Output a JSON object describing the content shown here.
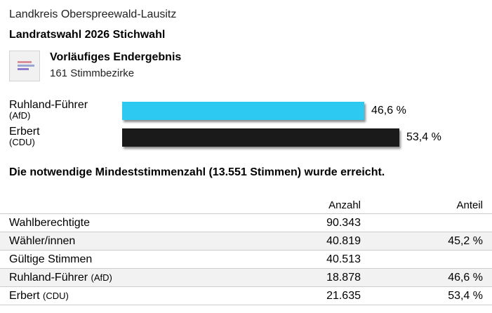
{
  "header": {
    "district": "Landkreis Oberspreewald-Lausitz",
    "election": "Landratswahl 2026 Stichwahl"
  },
  "status": {
    "icon": "bar-chart-icon",
    "title": "Vorläufiges Endergebnis",
    "subtitle": "161 Stimmbezirke"
  },
  "candidates": [
    {
      "name": "Ruhland-Führer",
      "party": "(AfD)",
      "percent_label": "46,6 %",
      "percent": 46.6,
      "color": "#2ec9f0"
    },
    {
      "name": "Erbert",
      "party": "(CDU)",
      "percent_label": "53,4 %",
      "percent": 53.4,
      "color": "#1a1a1a"
    }
  ],
  "notice": "Die notwendige Mindeststimmenzahl (13.551 Stimmen) wurde erreicht.",
  "table": {
    "col_count": "Anzahl",
    "col_share": "Anteil",
    "rows": [
      {
        "label": "Wahlberechtigte",
        "party": "",
        "count": "90.343",
        "share": ""
      },
      {
        "label": "Wähler/innen",
        "party": "",
        "count": "40.819",
        "share": "45,2 %"
      },
      {
        "label": "Gültige Stimmen",
        "party": "",
        "count": "40.513",
        "share": ""
      },
      {
        "label": "Ruhland-Führer",
        "party": "(AfD)",
        "count": "18.878",
        "share": "46,6 %"
      },
      {
        "label": "Erbert",
        "party": "(CDU)",
        "count": "21.635",
        "share": "53,4 %"
      }
    ]
  }
}
